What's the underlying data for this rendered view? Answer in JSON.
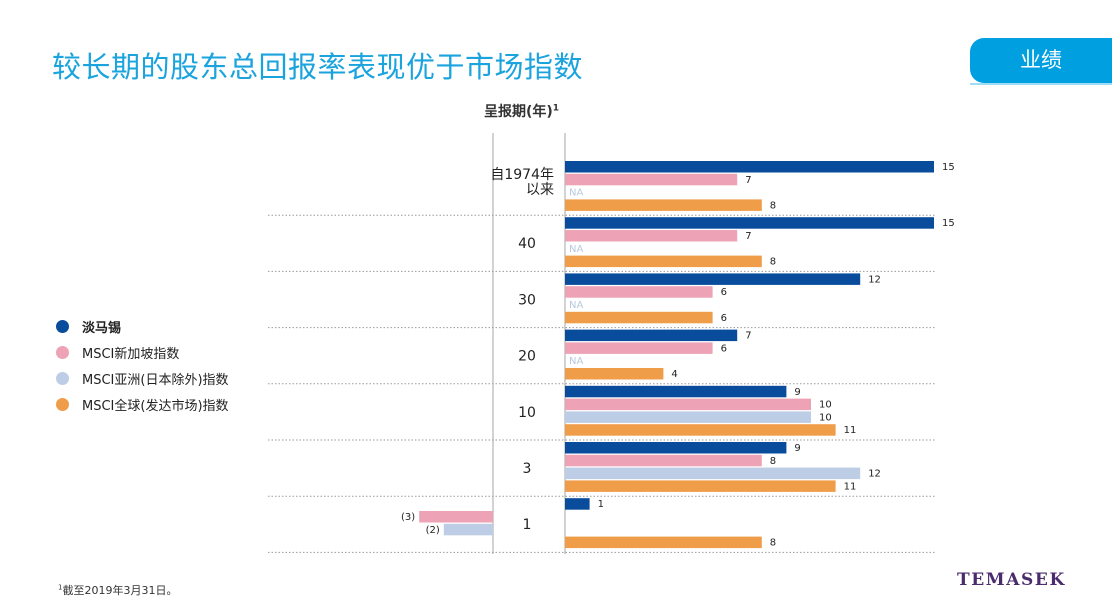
{
  "header": {
    "title": "较长期的股东总回报率表现优于市场指数",
    "tab_label": "业绩"
  },
  "period_header": {
    "label": "呈报期(年)",
    "superscript": "1"
  },
  "legend": [
    {
      "label": "淡马锡",
      "color": "#0a4c9c",
      "bold": true
    },
    {
      "label": "MSCI新加坡指数",
      "color": "#eda3b5",
      "bold": false
    },
    {
      "label": "MSCI亚洲(日本除外)指数",
      "color": "#bdcde5",
      "bold": false
    },
    {
      "label": "MSCI全球(发达市场)指数",
      "color": "#f09d4a",
      "bold": false
    }
  ],
  "footnote": {
    "marker": "1",
    "text": "截至2019年3月31日。"
  },
  "logo": "TEMASEK",
  "chart_data": {
    "type": "bar",
    "orientation": "horizontal",
    "categories": [
      "自1974年以来",
      "40",
      "30",
      "20",
      "10",
      "3",
      "1"
    ],
    "category_lines": [
      [
        "自1974年",
        "以来"
      ],
      [
        "40"
      ],
      [
        "30"
      ],
      [
        "20"
      ],
      [
        "10"
      ],
      [
        "3"
      ],
      [
        "1"
      ]
    ],
    "series": [
      {
        "name": "淡马锡",
        "color": "#0a4c9c",
        "values": [
          15,
          15,
          12,
          7,
          9,
          9,
          1
        ],
        "labels": [
          "15",
          "15",
          "12",
          "7",
          "9",
          "9",
          "1"
        ]
      },
      {
        "name": "MSCI新加坡指数",
        "color": "#eda3b5",
        "values": [
          7,
          7,
          6,
          6,
          10,
          8,
          -3
        ],
        "labels": [
          "7",
          "7",
          "6",
          "6",
          "10",
          "8",
          "(3)"
        ]
      },
      {
        "name": "MSCI亚洲(日本除外)指数",
        "color": "#bdcde5",
        "values": [
          null,
          null,
          null,
          null,
          10,
          12,
          -2
        ],
        "labels": [
          "NA",
          "NA",
          "NA",
          "NA",
          "10",
          "12",
          "(2)"
        ]
      },
      {
        "name": "MSCI全球(发达市场)指数",
        "color": "#f09d4a",
        "values": [
          8,
          8,
          6,
          4,
          11,
          11,
          8
        ],
        "labels": [
          "8",
          "8",
          "6",
          "4",
          "11",
          "11",
          "8"
        ]
      }
    ],
    "xlim": [
      -3,
      15
    ],
    "grid": false,
    "legend_position": "left"
  }
}
